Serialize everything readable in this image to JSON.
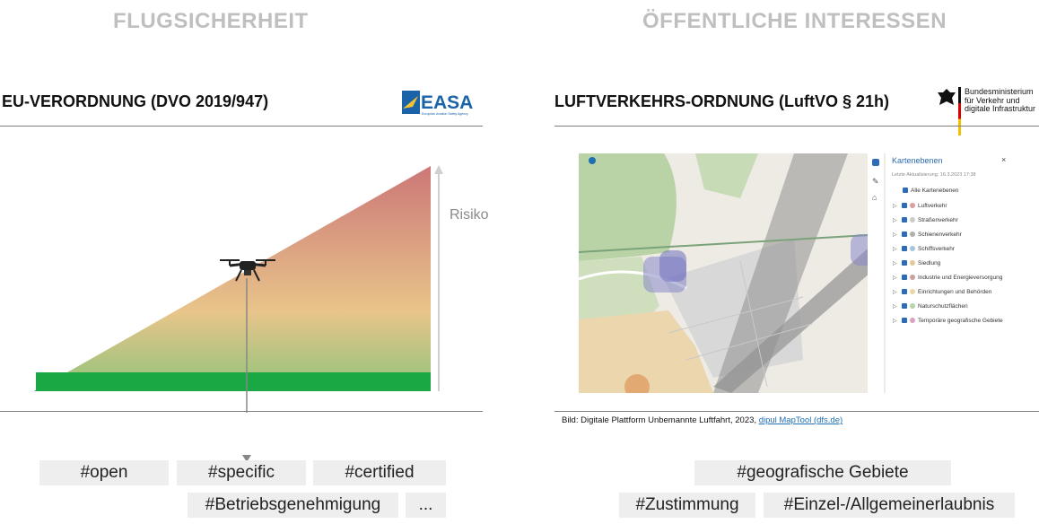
{
  "left": {
    "section_title": "FLUGSICHERHEIT",
    "subtitle": "EU-VERORDNUNG  (DVO 2019/947)",
    "logo_text": "EASA",
    "logo_subtext": "European Aviation Safety Agency",
    "risk_label": "Risiko",
    "tags": [
      "#open",
      "#specific",
      "#certified",
      "#Betriebsgenehmigung",
      "..."
    ]
  },
  "right": {
    "section_title": "ÖFFENTLICHE INTERESSEN",
    "subtitle": "LUFTVERKEHRS-ORDNUNG  (LuftVO § 21h)",
    "ministry_lines": [
      "Bundesministerium",
      "für Verkehr und",
      "digitale Infrastruktur"
    ],
    "caption_prefix": "Bild: Digitale Plattform Unbemannte Luftfahrt, 2023, ",
    "caption_link": "dipul MapTool (dfs.de)",
    "tags": [
      "#geografische Gebiete",
      "#Zustimmung",
      "#Einzel-/Allgemeinerlaubnis"
    ]
  },
  "map_panel": {
    "title": "Kartenebenen",
    "updated": "Letzte Aktualisierung: 16.3.2023 17:38",
    "all_layers": "Alle Kartenebenen",
    "layers": [
      {
        "label": "Luftverkehr",
        "color": "#d9a0a0"
      },
      {
        "label": "Straßenverkehr",
        "color": "#cccccc"
      },
      {
        "label": "Schienenverkehr",
        "color": "#b0b0b0"
      },
      {
        "label": "Schiffsverkehr",
        "color": "#a9c4e0"
      },
      {
        "label": "Siedlung",
        "color": "#e3c99a"
      },
      {
        "label": "Industrie und Energieversorgung",
        "color": "#c9a3a3"
      },
      {
        "label": "Einrichtungen und Behörden",
        "color": "#e8d9a6"
      },
      {
        "label": "Naturschutzflächen",
        "color": "#b7d3a8"
      },
      {
        "label": "Temporäre geografische Gebiete",
        "color": "#d9a3c0"
      }
    ]
  },
  "colors": {
    "title_gray": "#bfbfbf",
    "green": "#1aa845",
    "risk_red": "#cc7777",
    "easa_blue": "#1b63a8",
    "link": "#1f6fb2"
  }
}
